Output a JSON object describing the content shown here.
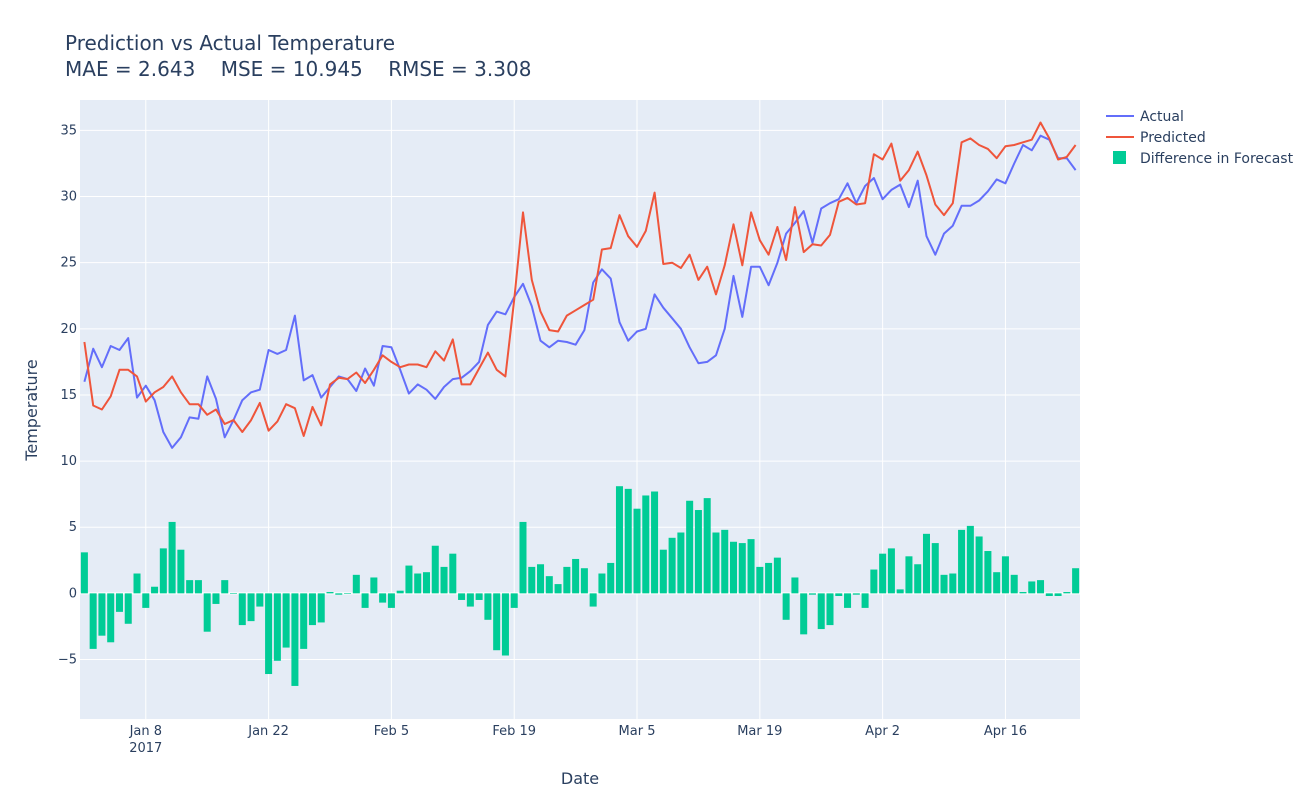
{
  "chart_data": {
    "type": "line+bar",
    "title": "Prediction vs Actual Temperature",
    "subtitle": "MAE = 2.643    MSE = 10.945    RMSE = 3.308",
    "xlabel": "Date",
    "ylabel": "Temperature",
    "ylim": [
      -9.5,
      37.3
    ],
    "y_ticks": [
      -5,
      0,
      5,
      10,
      15,
      20,
      25,
      30,
      35
    ],
    "y_tick_labels": [
      "−5",
      "0",
      "5",
      "10",
      "15",
      "20",
      "25",
      "30",
      "35"
    ],
    "x_start": "2017-01-01",
    "x_end": "2017-04-24",
    "x_ticks": [
      {
        "date": "2017-01-08",
        "label": "Jan 8",
        "sublabel": "2017"
      },
      {
        "date": "2017-01-22",
        "label": "Jan 22",
        "sublabel": ""
      },
      {
        "date": "2017-02-05",
        "label": "Feb 5",
        "sublabel": ""
      },
      {
        "date": "2017-02-19",
        "label": "Feb 19",
        "sublabel": ""
      },
      {
        "date": "2017-03-05",
        "label": "Mar 5",
        "sublabel": ""
      },
      {
        "date": "2017-03-19",
        "label": "Mar 19",
        "sublabel": ""
      },
      {
        "date": "2017-04-02",
        "label": "Apr 2",
        "sublabel": ""
      },
      {
        "date": "2017-04-16",
        "label": "Apr 16",
        "sublabel": ""
      }
    ],
    "grid": true,
    "legend_position": "top-right",
    "series": [
      {
        "name": "Actual",
        "kind": "line",
        "color": "#636efa",
        "values": [
          16.0,
          18.5,
          17.1,
          18.7,
          18.4,
          19.3,
          14.8,
          15.7,
          14.6,
          12.2,
          11.0,
          11.8,
          13.3,
          13.2,
          16.4,
          14.7,
          11.8,
          13.1,
          14.6,
          15.2,
          15.4,
          18.4,
          18.1,
          18.4,
          21.0,
          16.1,
          16.5,
          14.8,
          15.6,
          16.4,
          16.2,
          15.3,
          17.0,
          15.7,
          18.7,
          18.6,
          16.9,
          15.1,
          15.8,
          15.4,
          14.7,
          15.6,
          16.2,
          16.3,
          16.8,
          17.5,
          20.3,
          21.3,
          21.1,
          22.4,
          23.4,
          21.7,
          19.1,
          18.6,
          19.1,
          19.0,
          18.8,
          19.9,
          23.5,
          24.5,
          23.8,
          20.5,
          19.1,
          19.8,
          20.0,
          22.6,
          21.6,
          20.8,
          20.0,
          18.6,
          17.4,
          17.5,
          18.0,
          20.0,
          24.0,
          20.9,
          24.7,
          24.7,
          23.3,
          25.0,
          27.2,
          28.0,
          28.9,
          26.5,
          29.1,
          29.5,
          29.8,
          31.0,
          29.5,
          30.8,
          31.4,
          29.8,
          30.5,
          30.9,
          29.2,
          31.2,
          27.0,
          25.6,
          27.2,
          27.8,
          29.3,
          29.3,
          29.7,
          30.4,
          31.3,
          31.0,
          32.5,
          33.9,
          33.5,
          34.6,
          34.3,
          32.9,
          32.9,
          32.0
        ]
      },
      {
        "name": "Predicted",
        "kind": "line",
        "color": "#ef553b",
        "values": [
          19.0,
          14.2,
          13.9,
          14.9,
          16.9,
          16.9,
          16.4,
          14.5,
          15.2,
          15.6,
          16.4,
          15.2,
          14.3,
          14.3,
          13.5,
          13.9,
          12.8,
          13.1,
          12.2,
          13.1,
          14.4,
          12.3,
          13.0,
          14.3,
          14.0,
          11.9,
          14.1,
          12.7,
          15.8,
          16.3,
          16.2,
          16.7,
          15.9,
          16.9,
          18.0,
          17.5,
          17.1,
          17.3,
          17.3,
          17.1,
          18.3,
          17.6,
          19.2,
          15.8,
          15.8,
          17.0,
          18.2,
          16.9,
          16.4,
          22.2,
          28.8,
          23.7,
          21.3,
          19.9,
          19.8,
          21.0,
          21.4,
          21.8,
          22.2,
          26.0,
          26.1,
          28.6,
          27.0,
          26.2,
          27.4,
          30.3,
          24.9,
          25.0,
          24.6,
          25.6,
          23.7,
          24.7,
          22.6,
          24.8,
          27.9,
          24.8,
          28.8,
          26.7,
          25.6,
          27.7,
          25.2,
          29.2,
          25.8,
          26.4,
          26.3,
          27.1,
          29.6,
          29.9,
          29.4,
          29.5,
          33.2,
          32.8,
          34.0,
          31.2,
          32.0,
          33.4,
          31.6,
          29.4,
          28.6,
          29.5,
          34.1,
          34.4,
          33.9,
          33.6,
          32.9,
          33.8,
          33.9,
          34.1,
          34.3,
          35.6,
          34.4,
          32.8,
          33.0,
          33.9
        ]
      },
      {
        "name": "Difference in Forecast",
        "kind": "bar",
        "color": "#00cc96",
        "values": [
          3.1,
          -4.2,
          -3.2,
          -3.7,
          -1.4,
          -2.3,
          1.5,
          -1.1,
          0.5,
          3.4,
          5.4,
          3.3,
          1.0,
          1.0,
          -2.9,
          -0.8,
          1.0,
          0.0,
          -2.4,
          -2.1,
          -1.0,
          -6.1,
          -5.1,
          -4.1,
          -7.0,
          -4.2,
          -2.4,
          -2.2,
          0.1,
          -0.1,
          0.0,
          1.4,
          -1.1,
          1.2,
          -0.7,
          -1.1,
          0.2,
          2.1,
          1.5,
          1.6,
          3.6,
          2.0,
          3.0,
          -0.5,
          -1.0,
          -0.5,
          -2.0,
          -4.3,
          -4.7,
          -1.1,
          5.4,
          2.0,
          2.2,
          1.3,
          0.7,
          2.0,
          2.6,
          1.9,
          -1.0,
          1.5,
          2.3,
          8.1,
          7.9,
          6.4,
          7.4,
          7.7,
          3.3,
          4.2,
          4.6,
          7.0,
          6.3,
          7.2,
          4.6,
          4.8,
          3.9,
          3.8,
          4.1,
          2.0,
          2.3,
          2.7,
          -2.0,
          1.2,
          -3.1,
          -0.1,
          -2.7,
          -2.4,
          -0.2,
          -1.1,
          -0.1,
          -1.1,
          1.8,
          3.0,
          3.4,
          0.3,
          2.8,
          2.2,
          4.5,
          3.8,
          1.4,
          1.5,
          4.8,
          5.1,
          4.3,
          3.2,
          1.6,
          2.8,
          1.4,
          0.1,
          0.9,
          1.0,
          -0.2,
          -0.2,
          0.1,
          1.9
        ]
      }
    ]
  }
}
